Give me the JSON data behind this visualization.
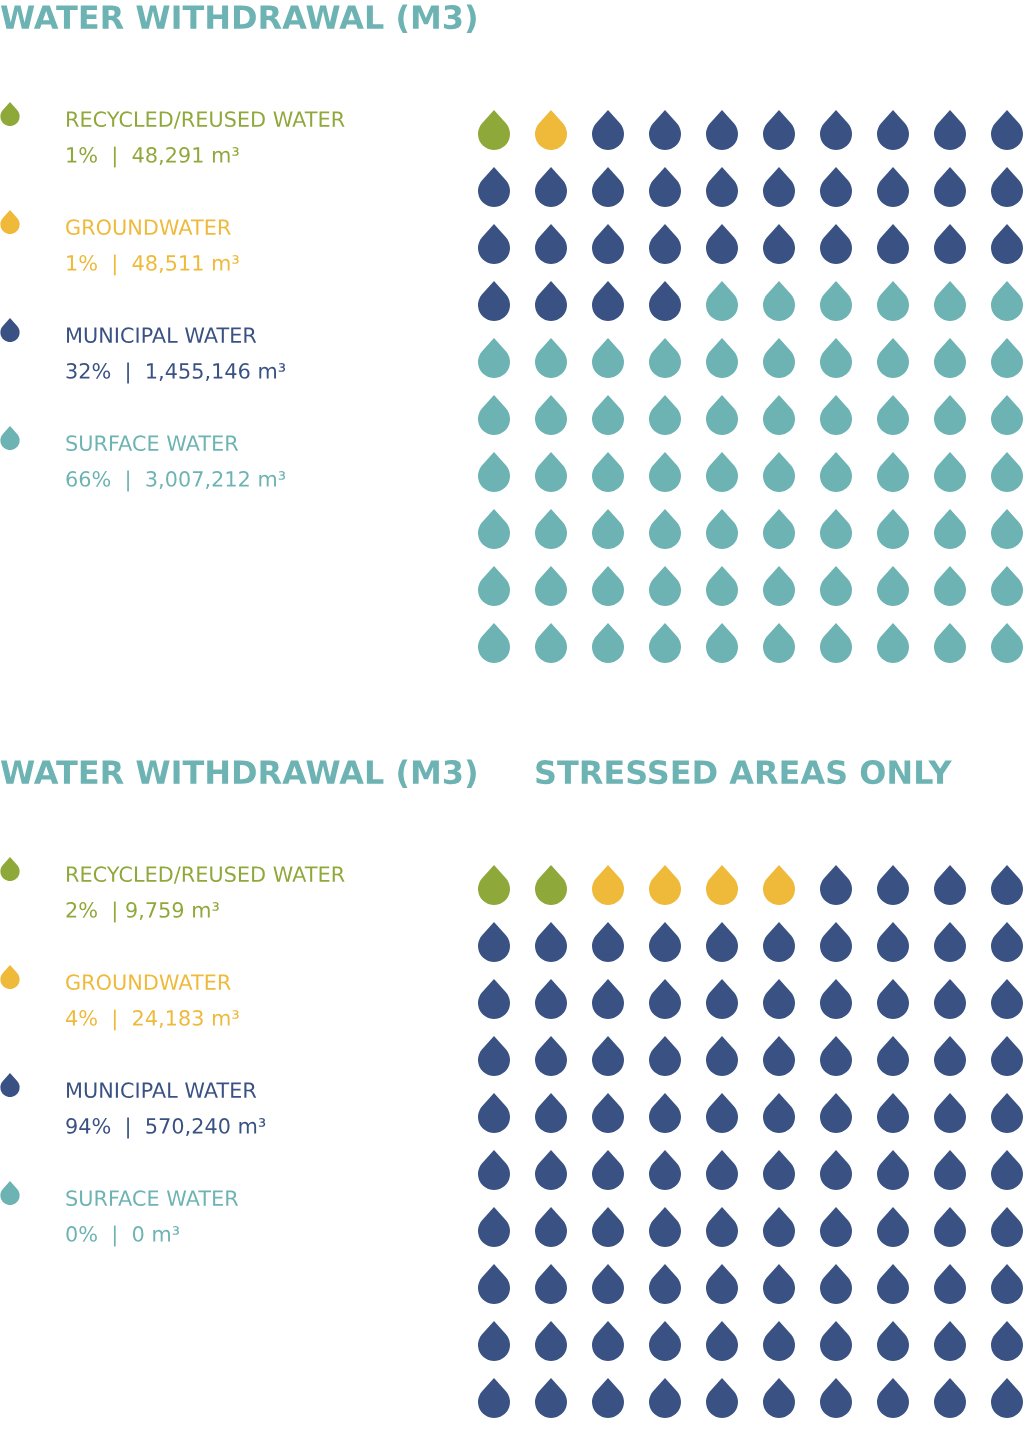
{
  "chart_data": [
    {
      "type": "other",
      "title": "WATER WITHDRAWAL (M3)",
      "categories": [
        "RECYCLED/REUSED WATER",
        "GROUNDWATER",
        "MUNICIPAL WATER",
        "SURFACE WATER"
      ],
      "colors": [
        "#8fa83a",
        "#efb93a",
        "#3a5283",
        "#6db3b3"
      ],
      "values": [
        1,
        1,
        32,
        66
      ],
      "value_labels": [
        "1%  |  48,291 m³",
        "1%  |  48,511 m³",
        "32%  |  1,455,146 m³",
        "66%  |  3,007,212 m³"
      ]
    },
    {
      "type": "other",
      "title": "WATER WITHDRAWAL (M3)",
      "subtitle": "STRESSED AREAS ONLY",
      "categories": [
        "RECYCLED/REUSED WATER",
        "GROUNDWATER",
        "MUNICIPAL WATER",
        "SURFACE WATER"
      ],
      "colors": [
        "#8fa83a",
        "#efb93a",
        "#3a5283",
        "#6db3b3"
      ],
      "values": [
        2,
        4,
        94,
        0
      ],
      "value_labels": [
        "2%  | 9,759 m³",
        "4%  |  24,183 m³",
        "94%  |  570,240 m³",
        "0%  |  0 m³"
      ]
    }
  ]
}
